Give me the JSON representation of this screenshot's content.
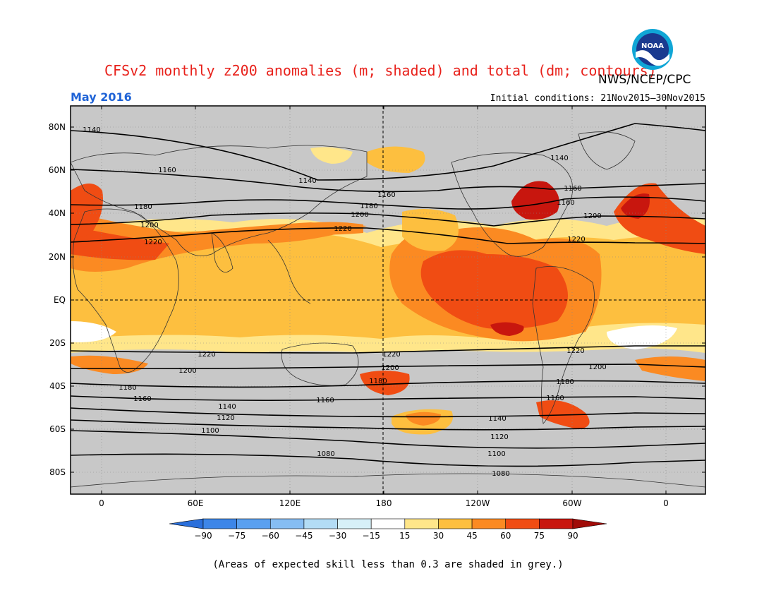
{
  "header": {
    "title": "CFSv2 monthly z200 anomalies (m; shaded) and total (dm; contours)",
    "org": "NWS/NCEP/CPC",
    "month": "May 2016",
    "initial_conditions": "Initial conditions: 21Nov2015–30Nov2015",
    "logo_text": "NOAA"
  },
  "map": {
    "lat_ticks": [
      "80N",
      "60N",
      "40N",
      "20N",
      "EQ",
      "20S",
      "40S",
      "60S",
      "80S"
    ],
    "lon_ticks": [
      "0",
      "60E",
      "120E",
      "180",
      "120W",
      "60W",
      "0"
    ],
    "background_color": "#c8c8c8",
    "contour_labels": {
      "c1140": "1140",
      "c1160": "1160",
      "c1180": "1180",
      "c1200": "1200",
      "c1220": "1220",
      "c1100": "1100",
      "c1120": "1120",
      "c1080": "1080"
    }
  },
  "colorbar": {
    "ticks": [
      "−90",
      "−75",
      "−60",
      "−45",
      "−30",
      "−15",
      "15",
      "30",
      "45",
      "60",
      "75",
      "90"
    ],
    "colors": [
      "#2a6fdb",
      "#3d86e8",
      "#5aa0f0",
      "#86bdf3",
      "#b3dcf5",
      "#d7f0f8",
      "#ffffff",
      "#ffe68a",
      "#fdbf3f",
      "#fb8a22",
      "#f04c13",
      "#c8160e",
      "#a00b08"
    ]
  },
  "footnote": "(Areas of expected skill less than 0.3 are shaded in grey.)"
}
